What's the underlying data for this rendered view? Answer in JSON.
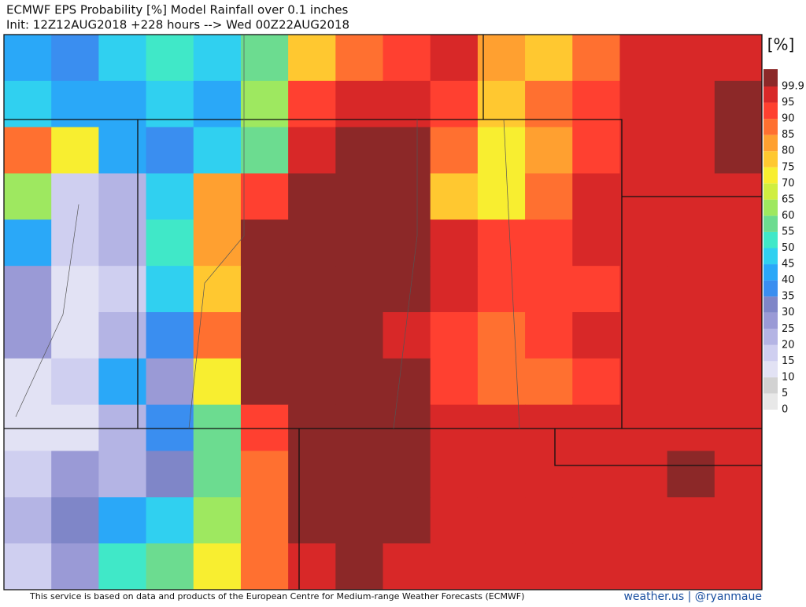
{
  "header": {
    "title": "ECMWF EPS Probability [%] Model Rainfall over 0.1 inches",
    "subtitle": "Init: 12Z12AUG2018 +228 hours --> Wed 00Z22AUG2018"
  },
  "map": {
    "grid": [
      [
        40,
        35,
        45,
        50,
        45,
        55,
        75,
        85,
        90,
        95,
        80,
        75,
        85,
        95,
        97,
        97
      ],
      [
        45,
        40,
        40,
        45,
        40,
        60,
        90,
        97,
        95,
        90,
        75,
        85,
        90,
        95,
        97,
        100
      ],
      [
        85,
        70,
        40,
        35,
        45,
        55,
        95,
        100,
        100,
        85,
        70,
        80,
        90,
        95,
        97,
        100
      ],
      [
        60,
        15,
        20,
        45,
        80,
        90,
        100,
        100,
        100,
        75,
        70,
        85,
        95,
        95,
        97,
        97
      ],
      [
        40,
        15,
        20,
        50,
        80,
        100,
        100,
        100,
        100,
        95,
        90,
        90,
        95,
        97,
        97,
        97
      ],
      [
        25,
        10,
        15,
        45,
        75,
        100,
        100,
        100,
        100,
        97,
        90,
        90,
        90,
        97,
        97,
        97
      ],
      [
        25,
        10,
        20,
        35,
        85,
        100,
        100,
        100,
        97,
        90,
        85,
        90,
        95,
        95,
        97,
        97
      ],
      [
        10,
        15,
        40,
        25,
        70,
        100,
        100,
        100,
        100,
        90,
        85,
        85,
        90,
        95,
        97,
        97
      ],
      [
        10,
        10,
        20,
        35,
        55,
        90,
        100,
        100,
        100,
        97,
        95,
        95,
        97,
        97,
        97,
        97
      ],
      [
        15,
        25,
        20,
        30,
        55,
        85,
        100,
        100,
        100,
        97,
        95,
        95,
        97,
        97,
        100,
        97
      ],
      [
        20,
        30,
        40,
        45,
        60,
        85,
        100,
        100,
        100,
        97,
        95,
        95,
        97,
        97,
        97,
        97
      ],
      [
        15,
        25,
        50,
        55,
        70,
        85,
        97,
        100,
        95,
        97,
        95,
        95,
        97,
        97,
        97,
        97
      ]
    ],
    "colorbar": {
      "unit": "[%]",
      "ticks": [
        0,
        5,
        10,
        15,
        20,
        25,
        30,
        35,
        40,
        45,
        50,
        55,
        60,
        65,
        70,
        75,
        80,
        85,
        90,
        95,
        99.9
      ],
      "colors": [
        "#e8e8e8",
        "#d2d2d2",
        "#e2e2f4",
        "#cfcff0",
        "#b4b4e4",
        "#9a9ad6",
        "#7f86c8",
        "#3a8ef0",
        "#2aa8f8",
        "#30d0f0",
        "#40e8c8",
        "#6cdc90",
        "#9ee860",
        "#d0ee40",
        "#f8ee30",
        "#ffc830",
        "#ffa030",
        "#ff7030",
        "#ff4030",
        "#d82828",
        "#8c2828"
      ]
    }
  },
  "footer": {
    "credit": "This service is based on data and products of the European Centre for Medium-range Weather Forecasts (ECMWF)",
    "source": "weather.us | @ryanmaue"
  }
}
